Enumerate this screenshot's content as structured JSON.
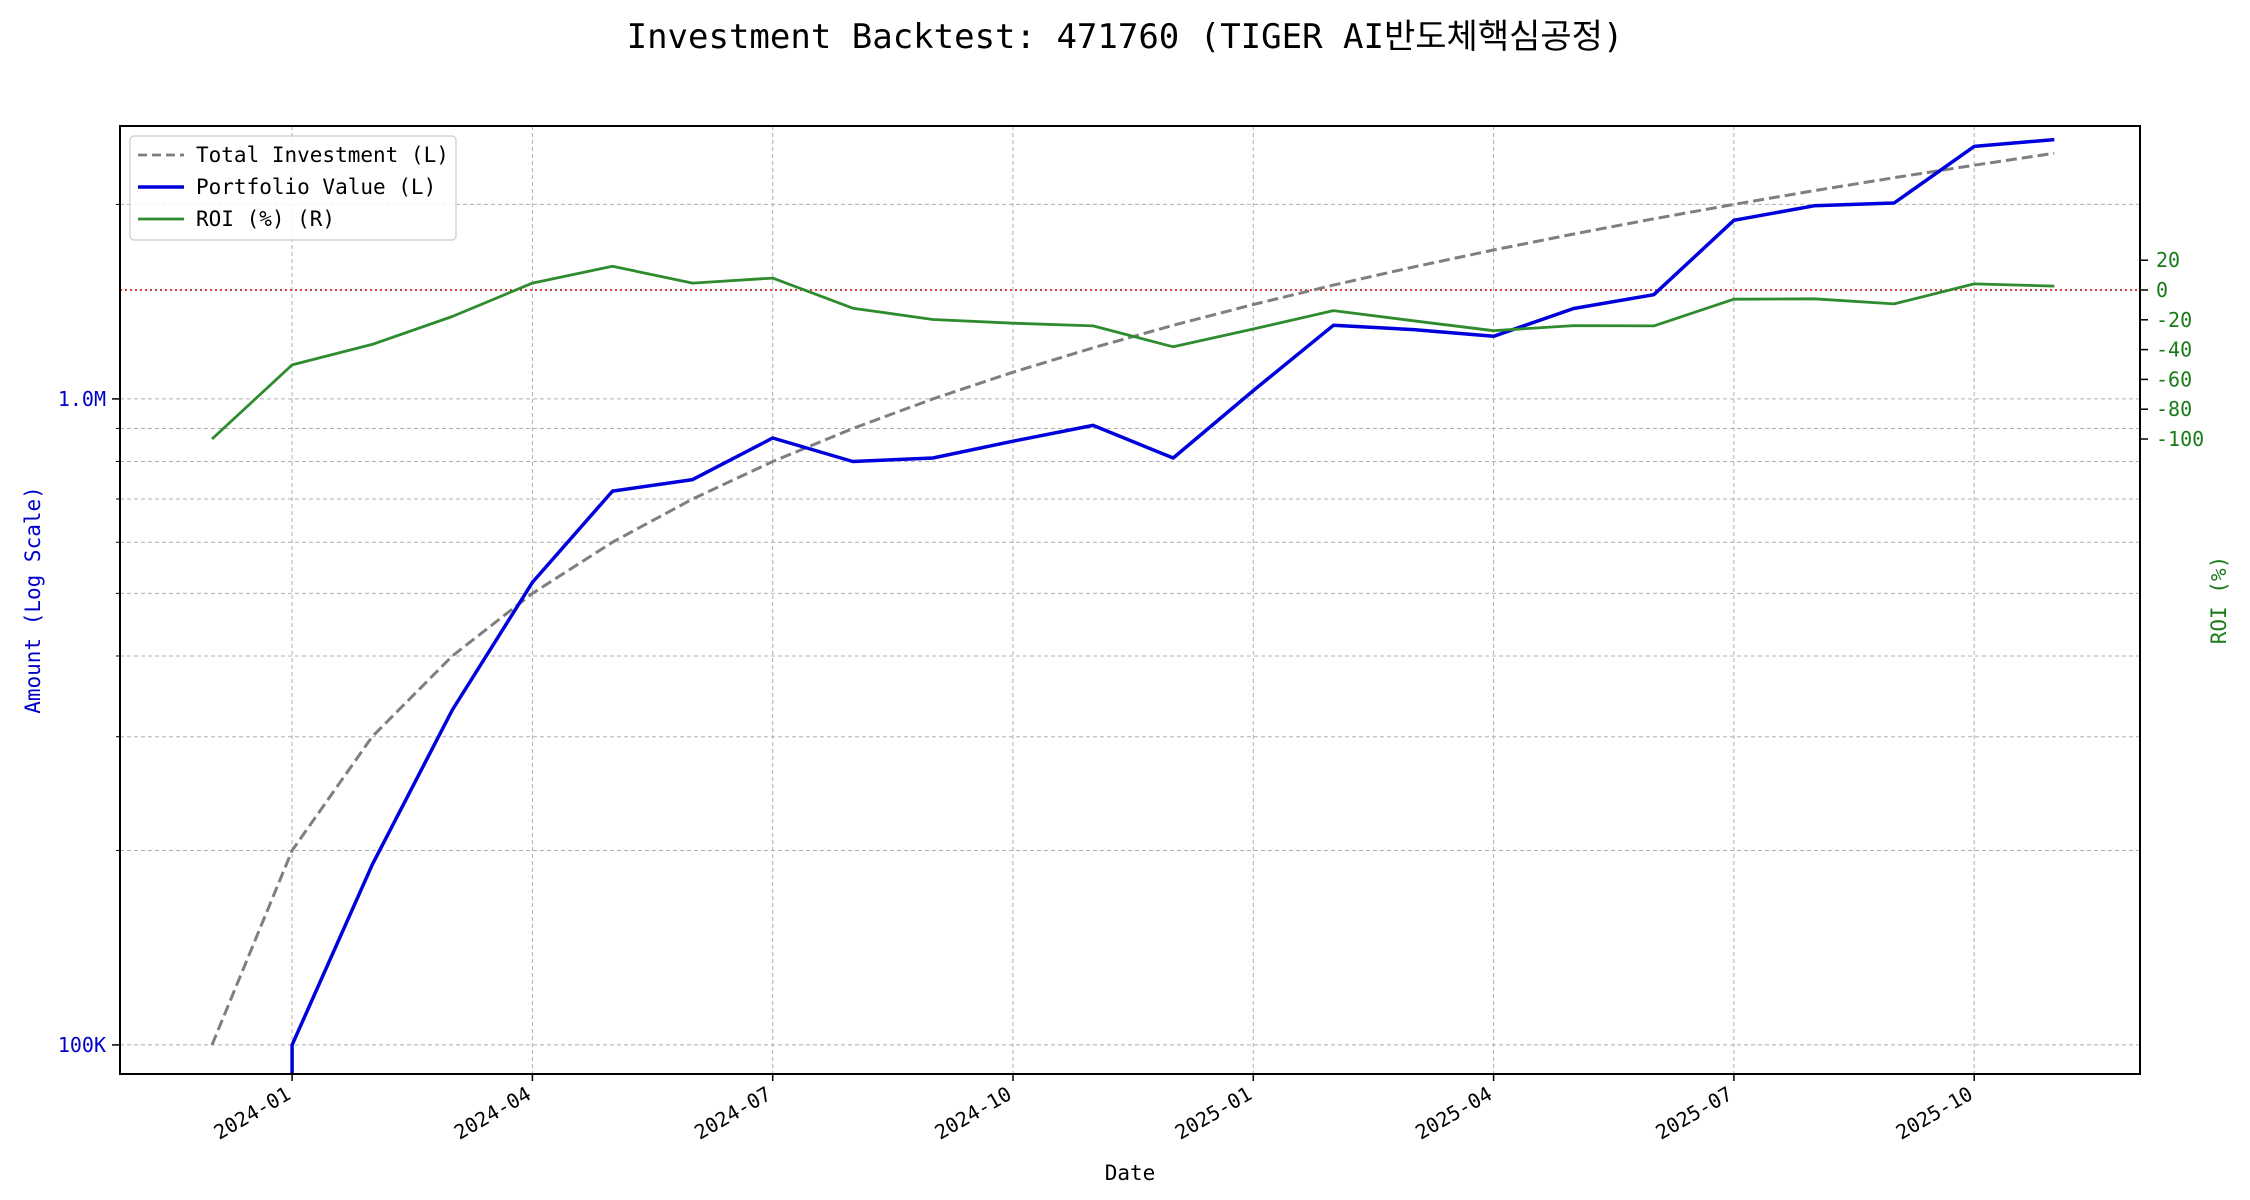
{
  "chart_data": {
    "type": "line",
    "title": "Investment Backtest: 471760 (TIGER AI반도체핵심공정)",
    "xlabel": "Date",
    "ylabel_left": "Amount (Log Scale)",
    "ylabel_right": "ROI (%)",
    "left_axis": {
      "scale": "log",
      "ticks": [
        {
          "value": 100000,
          "label": "100K"
        },
        {
          "value": 1000000,
          "label": "1.0M"
        }
      ],
      "color": "#0000cc"
    },
    "right_axis": {
      "scale": "linear",
      "ticks": [
        20,
        0,
        -20,
        -40,
        -60,
        -80,
        -100
      ],
      "color": "#1a7a1a"
    },
    "x_ticks": [
      "2024-01",
      "2024-04",
      "2024-07",
      "2024-10",
      "2025-01",
      "2025-04",
      "2025-07",
      "2025-10"
    ],
    "grid": true,
    "legend_position": "top-left",
    "legend": [
      "Total Investment (L)",
      "Portfolio Value (L)",
      "ROI (%) (R)"
    ],
    "zero_line": {
      "value": 0,
      "axis": "right",
      "color": "#cc0000",
      "style": "dotted"
    },
    "series": [
      {
        "name": "Total Investment (L)",
        "axis": "left",
        "color": "#7f7f7f",
        "style": "dashed",
        "x": [
          "2023-12",
          "2024-01",
          "2024-02",
          "2024-03",
          "2024-04",
          "2024-05",
          "2024-06",
          "2024-07",
          "2024-08",
          "2024-09",
          "2024-10",
          "2024-11",
          "2024-12",
          "2025-01",
          "2025-02",
          "2025-03",
          "2025-04",
          "2025-05",
          "2025-06",
          "2025-07",
          "2025-08",
          "2025-09",
          "2025-10",
          "2025-11"
        ],
        "values": [
          100000,
          200000,
          300000,
          400000,
          500000,
          600000,
          700000,
          800000,
          900000,
          1000000,
          1100000,
          1200000,
          1300000,
          1400000,
          1500000,
          1600000,
          1700000,
          1800000,
          1900000,
          2000000,
          2100000,
          2200000,
          2300000,
          2400000
        ]
      },
      {
        "name": "Portfolio Value (L)",
        "axis": "left",
        "color": "#0000dd",
        "style": "solid",
        "x": [
          "2024-01",
          "2024-01",
          "2024-02",
          "2024-03",
          "2024-04",
          "2024-05",
          "2024-06",
          "2024-07",
          "2024-08",
          "2024-09",
          "2024-10",
          "2024-11",
          "2024-12",
          "2025-01",
          "2025-02",
          "2025-03",
          "2025-04",
          "2025-05",
          "2025-06",
          "2025-07",
          "2025-08",
          "2025-09",
          "2025-10",
          "2025-11"
        ],
        "values": [
          80000,
          100000,
          190000,
          330000,
          520000,
          720000,
          750000,
          870000,
          800000,
          810000,
          860000,
          910000,
          810000,
          1030000,
          1300000,
          1280000,
          1250000,
          1380000,
          1450000,
          1890000,
          1990000,
          2010000,
          2460000,
          2520000
        ]
      },
      {
        "name": "ROI (%) (R)",
        "axis": "right",
        "color": "#2e8b2e",
        "style": "solid",
        "x": [
          "2023-12",
          "2024-01",
          "2024-02",
          "2024-03",
          "2024-04",
          "2024-05",
          "2024-06",
          "2024-07",
          "2024-08",
          "2024-09",
          "2024-10",
          "2024-11",
          "2024-12",
          "2025-01",
          "2025-02",
          "2025-03",
          "2025-04",
          "2025-05",
          "2025-06",
          "2025-07",
          "2025-08",
          "2025-09",
          "2025-10",
          "2025-11"
        ],
        "values": [
          -100,
          -50.3,
          -36.5,
          -17.8,
          4.6,
          15.9,
          4.6,
          8.0,
          -12.2,
          -19.8,
          -22.3,
          -24.1,
          -38.1,
          -26.2,
          -13.8,
          -20.7,
          -27.3,
          -23.9,
          -24.1,
          -6.2,
          -5.9,
          -9.3,
          4.1,
          2.6
        ]
      }
    ]
  }
}
